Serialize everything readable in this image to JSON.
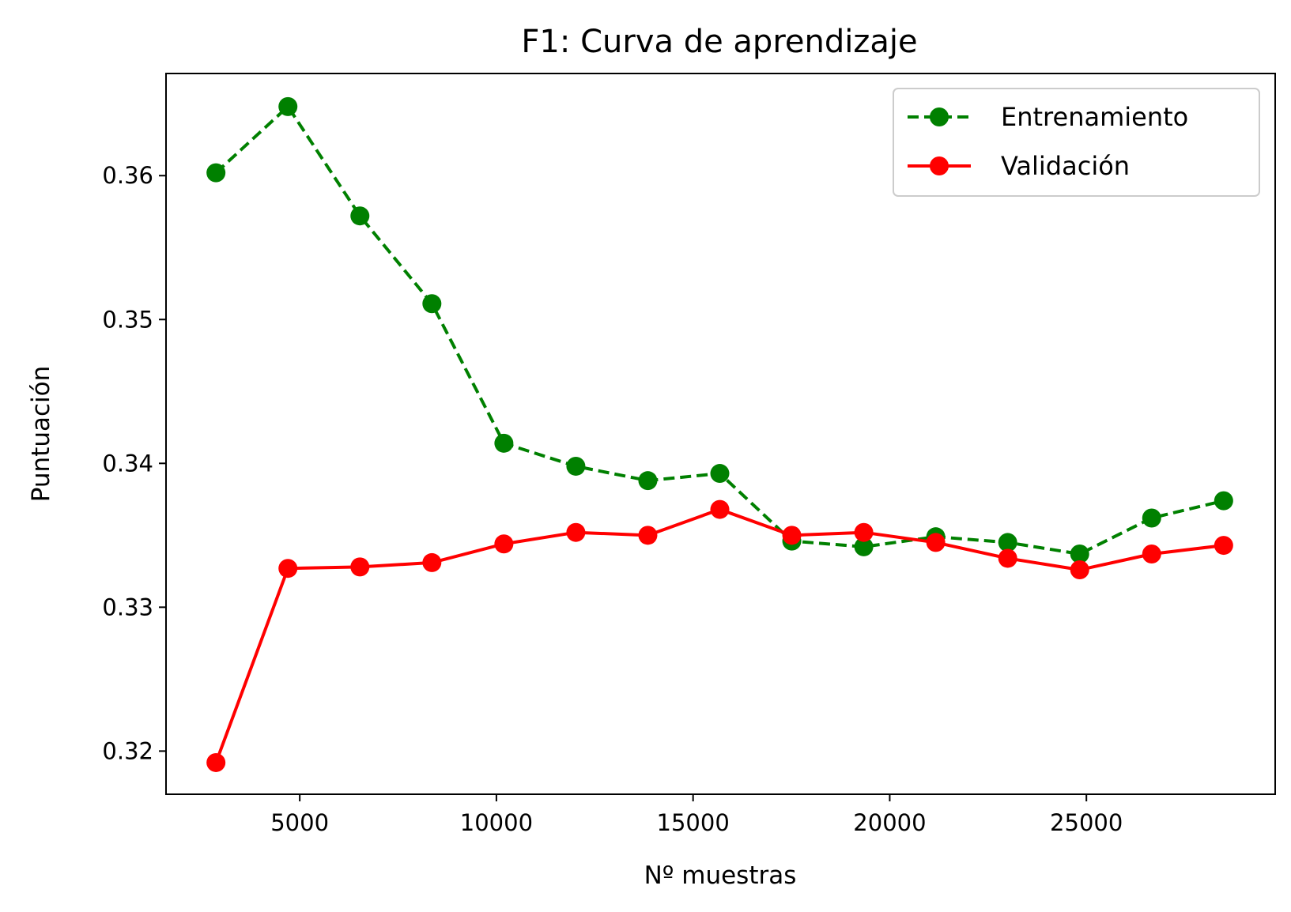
{
  "chart_data": {
    "type": "line",
    "title": "F1: Curva de aprendizaje",
    "xlabel": "Nº muestras",
    "ylabel": "Puntuación",
    "xlim": [
      1600,
      29800
    ],
    "ylim": [
      0.317,
      0.3671
    ],
    "xticks": [
      5000,
      10000,
      15000,
      20000,
      25000
    ],
    "xtick_labels": [
      "5000",
      "10000",
      "15000",
      "20000",
      "25000"
    ],
    "yticks": [
      0.32,
      0.33,
      0.34,
      0.35,
      0.36
    ],
    "ytick_labels": [
      "0.32",
      "0.33",
      "0.34",
      "0.35",
      "0.36"
    ],
    "grid": false,
    "legend_position": "top-right",
    "x": [
      2870,
      4700,
      6530,
      8360,
      10190,
      12020,
      13850,
      15680,
      17510,
      19340,
      21170,
      23000,
      24830,
      26660,
      28490
    ],
    "series": [
      {
        "name": "Entrenamiento",
        "color": "#008000",
        "line_style": "dashed",
        "marker": "circle",
        "values": [
          0.3602,
          0.3648,
          0.3572,
          0.3511,
          0.3414,
          0.3398,
          0.3388,
          0.3393,
          0.3346,
          0.3342,
          0.3349,
          0.3345,
          0.3337,
          0.3362,
          0.3374
        ]
      },
      {
        "name": "Validación",
        "color": "#ff0000",
        "line_style": "solid",
        "marker": "circle",
        "values": [
          0.3192,
          0.3327,
          0.3328,
          0.3331,
          0.3344,
          0.3352,
          0.335,
          0.3368,
          0.335,
          0.3352,
          0.3345,
          0.3334,
          0.3326,
          0.3337,
          0.3343
        ]
      }
    ]
  }
}
